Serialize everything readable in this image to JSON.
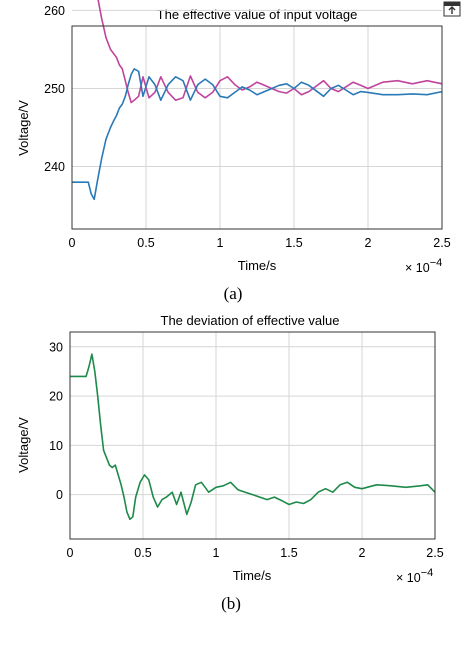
{
  "chart_data": [
    {
      "type": "line",
      "title": "The effective value of input voltage",
      "xlabel": "Time/s",
      "ylabel": "Voltage/V",
      "caption": "(a)",
      "x_multiplier_label": "× 10",
      "x_multiplier_exp": "−4",
      "xlim": [
        0,
        2.5
      ],
      "ylim": [
        232,
        258
      ],
      "grid": true,
      "x_ticks": [
        "0",
        "0.5",
        "1",
        "1.5",
        "2",
        "2.5"
      ],
      "x_tick_values": [
        0,
        0.5,
        1,
        1.5,
        2,
        2.5
      ],
      "y_ticks": [
        "240",
        "250",
        "260"
      ],
      "y_tick_values": [
        240,
        250,
        260
      ],
      "series": [
        {
          "color": "#c0449c",
          "x": [
            0,
            0.11,
            0.13,
            0.15,
            0.17,
            0.2,
            0.23,
            0.26,
            0.28,
            0.3,
            0.32,
            0.34,
            0.36,
            0.38,
            0.4,
            0.42,
            0.45,
            0.48,
            0.52,
            0.56,
            0.6,
            0.65,
            0.7,
            0.75,
            0.8,
            0.85,
            0.9,
            0.95,
            1.0,
            1.05,
            1.1,
            1.15,
            1.2,
            1.25,
            1.3,
            1.35,
            1.4,
            1.45,
            1.5,
            1.55,
            1.6,
            1.65,
            1.7,
            1.75,
            1.8,
            1.85,
            1.9,
            1.95,
            2.0,
            2.1,
            2.2,
            2.3,
            2.4,
            2.5
          ],
          "y": [
            262,
            262,
            263.5,
            264.5,
            262,
            259,
            256.5,
            255,
            254.5,
            254,
            253,
            252.5,
            251,
            249.5,
            248.2,
            248.5,
            249,
            251.5,
            248.8,
            249.5,
            251.5,
            249.5,
            248.5,
            248.8,
            251.6,
            249.5,
            248.8,
            249.5,
            251,
            251.5,
            250.5,
            249.8,
            250.2,
            250.8,
            250.4,
            250,
            249.6,
            249.4,
            250,
            249.2,
            249.6,
            250.3,
            251,
            250,
            249.6,
            250.2,
            250.8,
            250.4,
            250,
            250.8,
            251,
            250.6,
            251,
            250.6
          ]
        },
        {
          "color": "#2a7ab8",
          "x": [
            0,
            0.11,
            0.13,
            0.15,
            0.17,
            0.2,
            0.23,
            0.26,
            0.28,
            0.3,
            0.32,
            0.34,
            0.36,
            0.38,
            0.4,
            0.42,
            0.45,
            0.48,
            0.52,
            0.56,
            0.6,
            0.65,
            0.7,
            0.75,
            0.8,
            0.85,
            0.9,
            0.95,
            1.0,
            1.05,
            1.1,
            1.15,
            1.2,
            1.25,
            1.3,
            1.35,
            1.4,
            1.45,
            1.5,
            1.55,
            1.6,
            1.65,
            1.7,
            1.75,
            1.8,
            1.85,
            1.9,
            1.95,
            2.0,
            2.1,
            2.2,
            2.3,
            2.4,
            2.5
          ],
          "y": [
            238,
            238,
            236.5,
            235.8,
            238,
            241,
            243.5,
            245,
            245.8,
            246.5,
            247.5,
            248,
            249,
            250.5,
            251.8,
            252.5,
            252.2,
            249,
            251.5,
            250.5,
            248.5,
            250.5,
            251.5,
            251,
            248.5,
            250.5,
            251.2,
            250.5,
            249,
            248.8,
            249.5,
            250.2,
            249.8,
            249.2,
            249.6,
            250,
            250.4,
            250.6,
            250,
            250.8,
            250.4,
            249.7,
            249,
            250,
            250.4,
            249.8,
            249.2,
            249.6,
            249.5,
            249.2,
            249.2,
            249.3,
            249.2,
            249.6
          ]
        }
      ]
    },
    {
      "type": "line",
      "title": "The deviation of effective value",
      "xlabel": "Time/s",
      "ylabel": "Voltage/V",
      "caption": "(b)",
      "x_multiplier_label": "× 10",
      "x_multiplier_exp": "−4",
      "xlim": [
        0,
        2.5
      ],
      "ylim": [
        -9,
        33
      ],
      "grid": true,
      "x_ticks": [
        "0",
        "0.5",
        "1",
        "1.5",
        "2",
        "2.5"
      ],
      "x_tick_values": [
        0,
        0.5,
        1,
        1.5,
        2,
        2.5
      ],
      "y_ticks": [
        "0",
        "10",
        "20",
        "30"
      ],
      "y_tick_values": [
        0,
        10,
        20,
        30
      ],
      "series": [
        {
          "color": "#1e8a4a",
          "x": [
            0,
            0.11,
            0.13,
            0.15,
            0.17,
            0.19,
            0.21,
            0.23,
            0.25,
            0.27,
            0.29,
            0.31,
            0.33,
            0.35,
            0.37,
            0.39,
            0.41,
            0.43,
            0.45,
            0.48,
            0.51,
            0.54,
            0.57,
            0.6,
            0.63,
            0.66,
            0.7,
            0.73,
            0.76,
            0.8,
            0.83,
            0.86,
            0.9,
            0.95,
            1.0,
            1.05,
            1.1,
            1.15,
            1.2,
            1.25,
            1.3,
            1.35,
            1.4,
            1.45,
            1.5,
            1.55,
            1.6,
            1.65,
            1.7,
            1.75,
            1.8,
            1.85,
            1.9,
            1.95,
            2.0,
            2.1,
            2.2,
            2.3,
            2.4,
            2.45,
            2.5
          ],
          "y": [
            24,
            24,
            26,
            28.5,
            25,
            20,
            14,
            9,
            7.5,
            6,
            5.5,
            6,
            4,
            2,
            -0.5,
            -3.5,
            -5,
            -4.5,
            -0.5,
            2.5,
            4,
            3,
            -0.5,
            -2.5,
            -1,
            -0.5,
            0.5,
            -2,
            0.5,
            -4,
            -1.5,
            2,
            2.5,
            0.5,
            1.5,
            1.8,
            2.5,
            1,
            0.5,
            0,
            -0.5,
            -1,
            -0.5,
            -1.2,
            -2,
            -1.5,
            -1.8,
            -1,
            0.5,
            1.2,
            0.5,
            2,
            2.5,
            1.5,
            1.2,
            2,
            1.8,
            1.5,
            1.8,
            2,
            0.5
          ]
        }
      ]
    }
  ],
  "corner_icon": "expand-icon"
}
